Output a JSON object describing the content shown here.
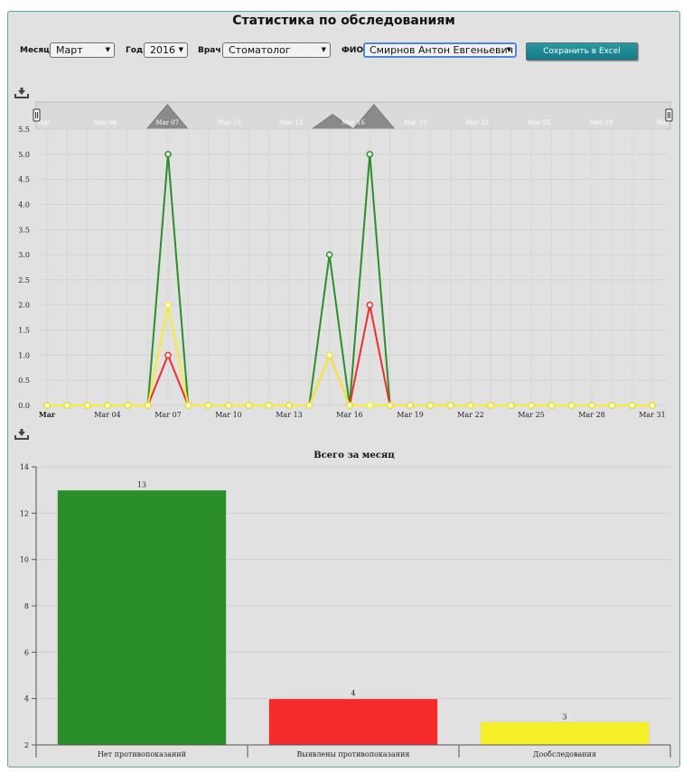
{
  "page": {
    "title": "Статистика по обследованиям"
  },
  "filters": {
    "month": {
      "label": "Месяц",
      "value": "Март"
    },
    "year": {
      "label": "Год",
      "value": "2016"
    },
    "doctor": {
      "label": "Врач",
      "value": "Стоматолог"
    },
    "fio": {
      "label": "ФИО",
      "value": "Смирнов Антон Евгеньевич"
    }
  },
  "actions": {
    "export_label": "Сохранить в Excel"
  },
  "icons": {
    "download": "download-icon",
    "handle": "slider-handle-icon"
  },
  "colors": {
    "panel_bg": "#e1e1e1",
    "green": "#2a8f28",
    "red": "#f52a2a",
    "yellow": "#f5f028",
    "accent": "#1c8a93"
  },
  "chart_data": [
    {
      "type": "line",
      "x": [
        "Mar 01",
        "Mar 02",
        "Mar 03",
        "Mar 04",
        "Mar 05",
        "Mar 06",
        "Mar 07",
        "Mar 08",
        "Mar 09",
        "Mar 10",
        "Mar 11",
        "Mar 12",
        "Mar 13",
        "Mar 14",
        "Mar 15",
        "Mar 16",
        "Mar 17",
        "Mar 18",
        "Mar 19",
        "Mar 20",
        "Mar 21",
        "Mar 22",
        "Mar 23",
        "Mar 24",
        "Mar 25",
        "Mar 26",
        "Mar 27",
        "Mar 28",
        "Mar 29",
        "Mar 30",
        "Mar 31"
      ],
      "x_tick_labels": [
        "Mar",
        "Mar 04",
        "Mar 07",
        "Mar 10",
        "Mar 13",
        "Mar 16",
        "Mar 19",
        "Mar 22",
        "Mar 25",
        "Mar 28",
        "Mar 31"
      ],
      "navigator_tick_labels": [
        "Mar",
        "Mar 04",
        "Mar 07",
        "Mar 10",
        "Mar 13",
        "Mar 16",
        "Mar 19",
        "Mar 22",
        "Mar 25",
        "Mar 28",
        "Mar"
      ],
      "y_ticks": [
        "0.0",
        "0.5",
        "1.0",
        "1.5",
        "2.0",
        "2.5",
        "3.0",
        "3.5",
        "4.0",
        "4.5",
        "5.0",
        "5.5"
      ],
      "ylim": [
        0,
        5.5
      ],
      "grid": true,
      "series": [
        {
          "color": "#2a8f28",
          "values": [
            0,
            0,
            0,
            0,
            0,
            0,
            5,
            0,
            0,
            0,
            0,
            0,
            0,
            0,
            3,
            0,
            5,
            0,
            0,
            0,
            0,
            0,
            0,
            0,
            0,
            0,
            0,
            0,
            0,
            0,
            0
          ]
        },
        {
          "color": "#f52a2a",
          "values": [
            0,
            0,
            0,
            0,
            0,
            0,
            1,
            0,
            0,
            0,
            0,
            0,
            0,
            0,
            1,
            0,
            2,
            0,
            0,
            0,
            0,
            0,
            0,
            0,
            0,
            0,
            0,
            0,
            0,
            0,
            0
          ]
        },
        {
          "color": "#f5f028",
          "values": [
            0,
            0,
            0,
            0,
            0,
            0,
            2,
            0,
            0,
            0,
            0,
            0,
            0,
            0,
            1,
            0,
            0,
            0,
            0,
            0,
            0,
            0,
            0,
            0,
            0,
            0,
            0,
            0,
            0,
            0,
            0
          ]
        }
      ]
    },
    {
      "type": "bar",
      "title": "Всего за месяц",
      "categories": [
        "Нет противопоказаний",
        "Выявлены противопоказания",
        "Дообследования"
      ],
      "values": [
        13,
        4,
        3
      ],
      "colors": [
        "#2a8f28",
        "#f52a2a",
        "#f5f028"
      ],
      "y_ticks": [
        "2",
        "4",
        "6",
        "8",
        "10",
        "12",
        "14"
      ],
      "ylim": [
        2,
        14
      ],
      "grid": true
    }
  ]
}
